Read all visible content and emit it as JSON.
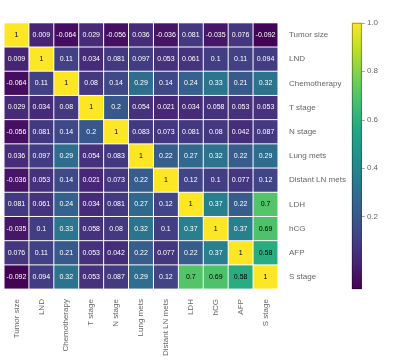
{
  "chart_data": {
    "type": "heatmap",
    "categories": [
      "Tumor size",
      "LND",
      "Chemotherapy",
      "T stage",
      "N stage",
      "Lung mets",
      "Distant LN mets",
      "LDH",
      "hCG",
      "AFP",
      "S stage"
    ],
    "values": [
      [
        1.0,
        0.009,
        -0.064,
        0.029,
        -0.056,
        0.036,
        -0.036,
        0.081,
        -0.035,
        0.076,
        -0.092
      ],
      [
        0.009,
        1.0,
        0.11,
        0.034,
        0.081,
        0.097,
        0.053,
        0.061,
        0.1,
        0.11,
        0.094
      ],
      [
        -0.064,
        0.11,
        1.0,
        0.08,
        0.14,
        0.29,
        0.14,
        0.24,
        0.33,
        0.21,
        0.32
      ],
      [
        0.029,
        0.034,
        0.08,
        1.0,
        0.2,
        0.054,
        0.021,
        0.034,
        0.058,
        0.053,
        0.053
      ],
      [
        -0.056,
        0.081,
        0.14,
        0.2,
        1.0,
        0.083,
        0.073,
        0.081,
        0.08,
        0.042,
        0.087
      ],
      [
        0.036,
        0.097,
        0.29,
        0.054,
        0.083,
        1.0,
        0.22,
        0.27,
        0.32,
        0.22,
        0.29
      ],
      [
        -0.036,
        0.053,
        0.14,
        0.021,
        0.073,
        0.22,
        1.0,
        0.12,
        0.1,
        0.077,
        0.12
      ],
      [
        0.081,
        0.061,
        0.24,
        0.034,
        0.081,
        0.27,
        0.12,
        1.0,
        0.37,
        0.22,
        0.7
      ],
      [
        -0.035,
        0.1,
        0.33,
        0.058,
        0.08,
        0.32,
        0.1,
        0.37,
        1.0,
        0.37,
        0.69
      ],
      [
        0.076,
        0.11,
        0.21,
        0.053,
        0.042,
        0.22,
        0.077,
        0.22,
        0.37,
        1.0,
        0.58
      ],
      [
        -0.092,
        0.094,
        0.32,
        0.053,
        0.087,
        0.29,
        0.12,
        0.7,
        0.69,
        0.58,
        1.0
      ]
    ],
    "color": "viridis",
    "colorbar_range": [
      -0.1,
      1.0
    ],
    "colorbar_ticks": [
      0.2,
      0.4,
      0.6,
      0.8,
      {
        "value": 1.0,
        "label": "1.0"
      }
    ],
    "data_labels": true,
    "grid": false
  }
}
